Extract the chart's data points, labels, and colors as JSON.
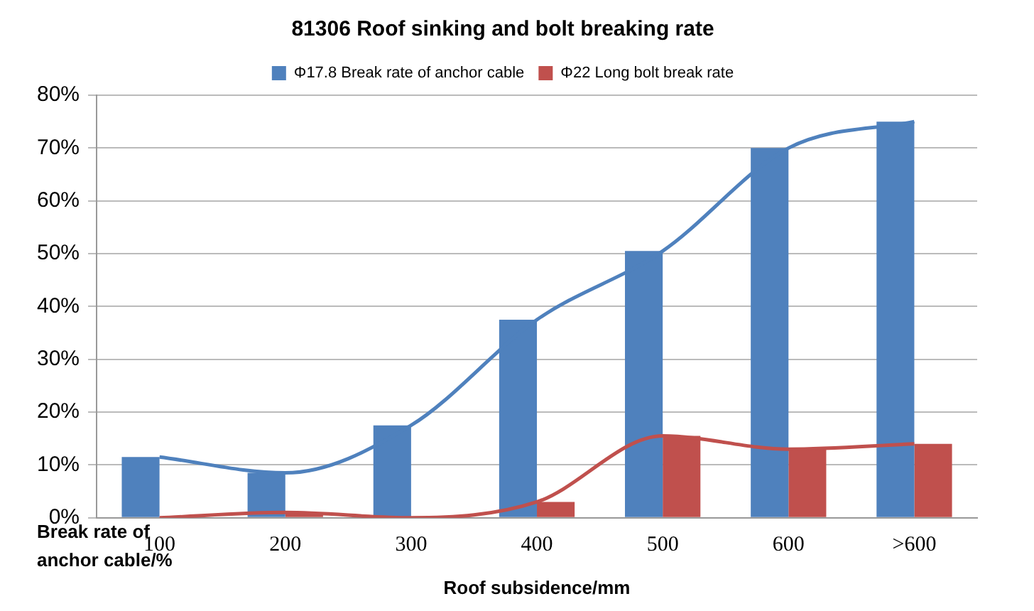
{
  "chart_data": {
    "type": "bar",
    "title": "81306 Roof sinking and bolt breaking rate",
    "xlabel": "Roof subsidence/mm",
    "ylabel": "Break rate of anchor cable/%",
    "categories": [
      "100",
      "200",
      "300",
      "400",
      "500",
      "600",
      ">600"
    ],
    "series": [
      {
        "name": "Φ17.8 Break rate of anchor cable",
        "color": "#4f81bd",
        "values": [
          11.5,
          8.5,
          17.5,
          37.5,
          50.5,
          70,
          75
        ]
      },
      {
        "name": "Φ22 Long bolt break rate",
        "color": "#c0504d",
        "values": [
          0,
          1,
          0,
          3,
          15.5,
          13,
          14
        ]
      },
      {
        "type": "line",
        "color": "#4f81bd",
        "values": [
          11.5,
          8.5,
          17.5,
          37.5,
          50.5,
          70,
          75
        ]
      },
      {
        "type": "line",
        "color": "#c0504d",
        "values": [
          0,
          1,
          0,
          3,
          15.5,
          13,
          14
        ]
      }
    ],
    "ylim": [
      0,
      80
    ],
    "yticks": [
      {
        "value": 0,
        "label": "0%"
      },
      {
        "value": 10,
        "label": "10%"
      },
      {
        "value": 20,
        "label": "20%"
      },
      {
        "value": 30,
        "label": "30%"
      },
      {
        "value": 40,
        "label": "40%"
      },
      {
        "value": 50,
        "label": "50%"
      },
      {
        "value": 60,
        "label": "60%"
      },
      {
        "value": 70,
        "label": "70%"
      },
      {
        "value": 80,
        "label": "80%"
      }
    ],
    "grid": "y",
    "legend": "top",
    "marker": "none",
    "line_style": "solid"
  }
}
